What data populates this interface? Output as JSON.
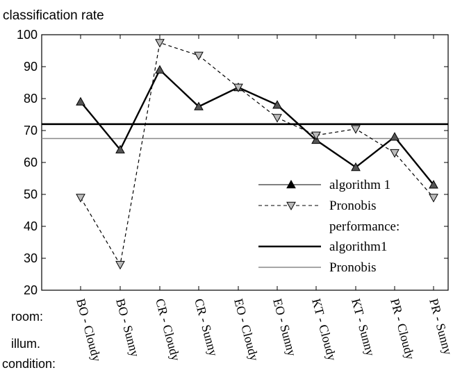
{
  "chart_data": {
    "type": "line",
    "ylabel": "classification rate",
    "ylim": [
      20,
      100
    ],
    "yticks": [
      20,
      30,
      40,
      50,
      60,
      70,
      80,
      90,
      100
    ],
    "grid": false,
    "legend_placement": "bottom-right",
    "categories": [
      "BO - Cloudy",
      "BO - Sunny",
      "CR - Cloudy",
      "CR - Sunny",
      "EO - Cloudy",
      "EO - Sunny",
      "KT - Cloudy",
      "KT - Sunny",
      "PR - Cloudy",
      "PR - Sunny"
    ],
    "row_labels": {
      "room": "room:",
      "illum": "illum.",
      "condition": "condition:"
    },
    "series": [
      {
        "name": "algorithm 1",
        "values": [
          79,
          64,
          89,
          77.5,
          83.5,
          78,
          67,
          58.5,
          68,
          53
        ],
        "style": "solid",
        "marker": "triangle-up",
        "color": "#000000",
        "marker_fill": "#555555"
      },
      {
        "name": "Pronobis",
        "values": [
          49,
          28,
          97.5,
          93.5,
          83.5,
          74,
          68.5,
          70.5,
          63,
          49
        ],
        "style": "dashed",
        "marker": "triangle-down",
        "color": "#000000",
        "marker_fill": "#bbbbbb"
      }
    ],
    "reference_lines": [
      {
        "name": "algorithm1",
        "value": 72,
        "color": "#000000"
      },
      {
        "name": "Pronobis",
        "value": 67.5,
        "color": "#888888"
      }
    ],
    "legend_subtitle": "performance:"
  }
}
